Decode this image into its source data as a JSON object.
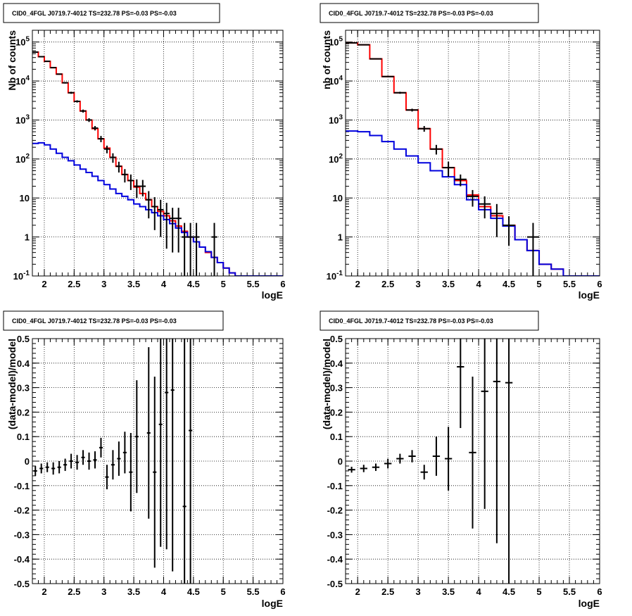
{
  "chart_data": [
    {
      "type": "line",
      "title": "CID0_4FGL J0719.7-4012 TS=232.78 PS=-0.03 PS=-0.03",
      "xlabel": "logE",
      "ylabel": "Nb of counts",
      "xlim": [
        1.8,
        6.0
      ],
      "ylim": [
        0.1,
        200000
      ],
      "yscale": "log",
      "grid": true,
      "x_ticks": [
        "2",
        "2.5",
        "3",
        "3.5",
        "4",
        "4.5",
        "5",
        "5.5",
        "6"
      ],
      "y_ticks": [
        "10^-1",
        "1",
        "10",
        "10^2",
        "10^3",
        "10^4",
        "10^5"
      ],
      "bin_width": 0.1,
      "series": [
        {
          "kind": "step",
          "color": "#ff0000",
          "bin_lo": [
            1.8,
            1.9,
            2.0,
            2.1,
            2.2,
            2.3,
            2.4,
            2.5,
            2.6,
            2.7,
            2.8,
            2.9,
            3.0,
            3.1,
            3.2,
            3.3,
            3.4,
            3.5,
            3.6,
            3.7,
            3.8,
            3.9,
            4.0,
            4.1,
            4.2,
            4.3,
            4.4,
            4.5,
            4.6,
            4.7,
            4.8,
            4.9,
            5.0,
            5.1,
            5.2,
            5.3,
            5.4,
            5.5,
            5.6,
            5.7,
            5.8,
            5.9
          ],
          "values": [
            55000,
            42000,
            32000,
            22000,
            15000,
            9000,
            5000,
            3000,
            1700,
            1000,
            600,
            330,
            190,
            110,
            65,
            40,
            28,
            19,
            13,
            9,
            6,
            4.5,
            3.5,
            2.6,
            1.9,
            1.4,
            1.0,
            0.75,
            0.55,
            0.4,
            0.3,
            0.22,
            0.16,
            0.12,
            0.1,
            0.1,
            0.1,
            0.1,
            0.1,
            0.1,
            0.1,
            0.1
          ]
        },
        {
          "kind": "step",
          "color": "#0000dd",
          "bin_lo": [
            1.8,
            1.9,
            2.0,
            2.1,
            2.2,
            2.3,
            2.4,
            2.5,
            2.6,
            2.7,
            2.8,
            2.9,
            3.0,
            3.1,
            3.2,
            3.3,
            3.4,
            3.5,
            3.6,
            3.7,
            3.8,
            3.9,
            4.0,
            4.1,
            4.2,
            4.3,
            4.4,
            4.5,
            4.6,
            4.7,
            4.8,
            4.9,
            5.0,
            5.1,
            5.2,
            5.3,
            5.4,
            5.5,
            5.6,
            5.7,
            5.8,
            5.9
          ],
          "values": [
            250,
            260,
            230,
            180,
            140,
            110,
            90,
            70,
            55,
            45,
            36,
            28,
            22,
            17,
            13,
            11,
            9,
            7,
            6,
            5,
            4.2,
            3.5,
            2.8,
            2.2,
            1.7,
            1.3,
            1.0,
            0.75,
            0.55,
            0.42,
            0.3,
            0.22,
            0.16,
            0.12,
            0.1,
            0.1,
            0.1,
            0.1,
            0.1,
            0.1,
            0.1,
            0.1
          ]
        },
        {
          "kind": "points",
          "color": "#000000",
          "x": [
            1.85,
            1.95,
            2.05,
            2.15,
            2.25,
            2.35,
            2.45,
            2.55,
            2.65,
            2.75,
            2.85,
            2.95,
            3.05,
            3.15,
            3.25,
            3.35,
            3.45,
            3.55,
            3.65,
            3.75,
            3.85,
            3.95,
            4.05,
            4.15,
            4.25,
            4.35,
            4.45,
            4.55,
            4.85
          ],
          "y": [
            55000,
            42000,
            32000,
            22000,
            15000,
            9000,
            5000,
            3000,
            1700,
            1000,
            620,
            330,
            180,
            110,
            65,
            40,
            28,
            20,
            20,
            9,
            6,
            5,
            4,
            3,
            3,
            1,
            1,
            1,
            1
          ],
          "y_err_lo": [
            1000,
            800,
            700,
            600,
            500,
            400,
            300,
            200,
            150,
            110,
            80,
            60,
            40,
            30,
            20,
            15,
            12,
            10,
            9,
            6,
            4.5,
            4,
            3.5,
            2.6,
            2.6,
            1,
            1,
            1,
            1
          ],
          "y_err_hi": [
            1000,
            800,
            700,
            600,
            500,
            400,
            300,
            200,
            150,
            110,
            80,
            60,
            40,
            30,
            20,
            15,
            12,
            10,
            9,
            6,
            4.5,
            4,
            3.5,
            2.6,
            2.6,
            1.3,
            1.3,
            1.3,
            1.3
          ]
        }
      ]
    },
    {
      "type": "line",
      "title": "CID0_4FGL J0719.7-4012 TS=232.78 PS=-0.03 PS=-0.03",
      "xlabel": "logE",
      "ylabel": "nb of counts",
      "xlim": [
        1.8,
        6.0
      ],
      "ylim": [
        0.1,
        200000
      ],
      "yscale": "log",
      "grid": true,
      "x_ticks": [
        "2",
        "2.5",
        "3",
        "3.5",
        "4",
        "4.5",
        "5",
        "5.5",
        "6"
      ],
      "y_ticks": [
        "10^-1",
        "1",
        "10",
        "10^2",
        "10^3",
        "10^4",
        "10^5"
      ],
      "bin_width": 0.2,
      "series": [
        {
          "kind": "step",
          "color": "#ff0000",
          "bin_lo": [
            1.8,
            2.0,
            2.2,
            2.4,
            2.6,
            2.8,
            3.0,
            3.2,
            3.4,
            3.6,
            3.8,
            4.0,
            4.2,
            4.4,
            4.6,
            4.8,
            5.0,
            5.2,
            5.4,
            5.6,
            5.8
          ],
          "values": [
            95000,
            85000,
            37000,
            13000,
            5000,
            1800,
            600,
            180,
            60,
            28,
            12,
            6,
            3.5,
            2.0,
            0.85,
            0.45,
            0.2,
            0.15,
            0.1,
            0.1,
            0.1
          ]
        },
        {
          "kind": "step",
          "color": "#0000dd",
          "bin_lo": [
            1.8,
            2.0,
            2.2,
            2.4,
            2.6,
            2.8,
            3.0,
            3.2,
            3.4,
            3.6,
            3.8,
            4.0,
            4.2,
            4.4,
            4.6,
            4.8,
            5.0,
            5.2,
            5.4,
            5.6,
            5.8
          ],
          "values": [
            520,
            500,
            400,
            280,
            180,
            120,
            80,
            50,
            35,
            22,
            9,
            5,
            3,
            1.9,
            0.85,
            0.45,
            0.2,
            0.15,
            0.1,
            0.1,
            0.1
          ]
        },
        {
          "kind": "points",
          "color": "#000000",
          "x": [
            1.9,
            2.1,
            2.3,
            2.5,
            2.7,
            2.9,
            3.1,
            3.3,
            3.5,
            3.7,
            3.9,
            4.1,
            4.3,
            4.5,
            4.9
          ],
          "y": [
            95000,
            85000,
            37000,
            13000,
            5000,
            1800,
            600,
            180,
            60,
            30,
            11,
            7,
            4,
            2,
            1
          ],
          "y_err_lo": [
            1500,
            1500,
            1000,
            500,
            300,
            150,
            100,
            50,
            25,
            10,
            5,
            4,
            3,
            1.4,
            1
          ],
          "y_err_hi": [
            1500,
            1500,
            1000,
            500,
            300,
            150,
            100,
            50,
            25,
            10,
            5,
            4,
            3,
            1.4,
            1.3
          ]
        }
      ]
    },
    {
      "type": "scatter",
      "title": "CID0_4FGL J0719.7-4012 TS=232.78 PS=-0.03 PS=-0.03",
      "xlabel": "logE",
      "ylabel": "(data-model)/model",
      "xlim": [
        1.8,
        6.0
      ],
      "ylim": [
        -0.5,
        0.5
      ],
      "grid": true,
      "x_ticks": [
        "2",
        "2.5",
        "3",
        "3.5",
        "4",
        "4.5",
        "5",
        "5.5",
        "6"
      ],
      "y_ticks": [
        "-0.5",
        "-0.4",
        "-0.3",
        "-0.2",
        "-0.1",
        "0",
        "0.1",
        "0.2",
        "0.3",
        "0.4",
        "0.5"
      ],
      "x_half_width": 0.05,
      "series": [
        {
          "color": "#000000",
          "x": [
            1.85,
            1.95,
            2.05,
            2.15,
            2.25,
            2.35,
            2.45,
            2.55,
            2.65,
            2.75,
            2.85,
            2.95,
            3.05,
            3.15,
            3.25,
            3.35,
            3.45,
            3.55,
            3.75,
            3.85,
            3.95,
            4.05,
            4.15,
            4.35,
            4.45
          ],
          "y": [
            -0.04,
            -0.03,
            -0.025,
            -0.03,
            -0.025,
            -0.015,
            0.0,
            -0.005,
            0.015,
            0.0,
            0.005,
            0.055,
            -0.065,
            -0.015,
            0.01,
            0.035,
            -0.045,
            0.1,
            0.115,
            -0.045,
            0.15,
            0.28,
            0.29,
            -0.185,
            0.125
          ],
          "y_err": [
            0.02,
            0.02,
            0.02,
            0.025,
            0.025,
            0.025,
            0.03,
            0.03,
            0.03,
            0.035,
            0.035,
            0.04,
            0.05,
            0.06,
            0.07,
            0.085,
            0.16,
            0.23,
            0.35,
            0.39,
            0.5,
            0.64,
            0.74,
            0.9,
            0.9
          ]
        }
      ]
    },
    {
      "type": "scatter",
      "title": "CID0_4FGL J0719.7-4012 TS=232.78 PS=-0.03 PS=-0.03",
      "xlabel": "logE",
      "ylabel": "(data-model)/model",
      "xlim": [
        1.8,
        6.0
      ],
      "ylim": [
        -0.5,
        0.5
      ],
      "grid": true,
      "x_ticks": [
        "2",
        "2.5",
        "3",
        "3.5",
        "4",
        "4.5",
        "5",
        "5.5",
        "6"
      ],
      "y_ticks": [
        "-0.5",
        "-0.4",
        "-0.3",
        "-0.2",
        "-0.1",
        "0",
        "0.1",
        "0.2",
        "0.3",
        "0.4",
        "0.5"
      ],
      "x_half_width": 0.1,
      "series": [
        {
          "color": "#000000",
          "x": [
            1.9,
            2.1,
            2.3,
            2.5,
            2.7,
            2.9,
            3.1,
            3.3,
            3.5,
            3.7,
            3.9,
            4.1,
            4.3,
            4.5
          ],
          "y": [
            -0.035,
            -0.03,
            -0.025,
            -0.01,
            0.01,
            0.02,
            -0.045,
            0.02,
            0.01,
            0.385,
            0.035,
            0.285,
            0.325,
            0.32
          ],
          "y_err": [
            0.012,
            0.015,
            0.015,
            0.02,
            0.02,
            0.025,
            0.03,
            0.08,
            0.13,
            0.25,
            0.31,
            0.48,
            0.66,
            0.85
          ]
        }
      ]
    }
  ]
}
